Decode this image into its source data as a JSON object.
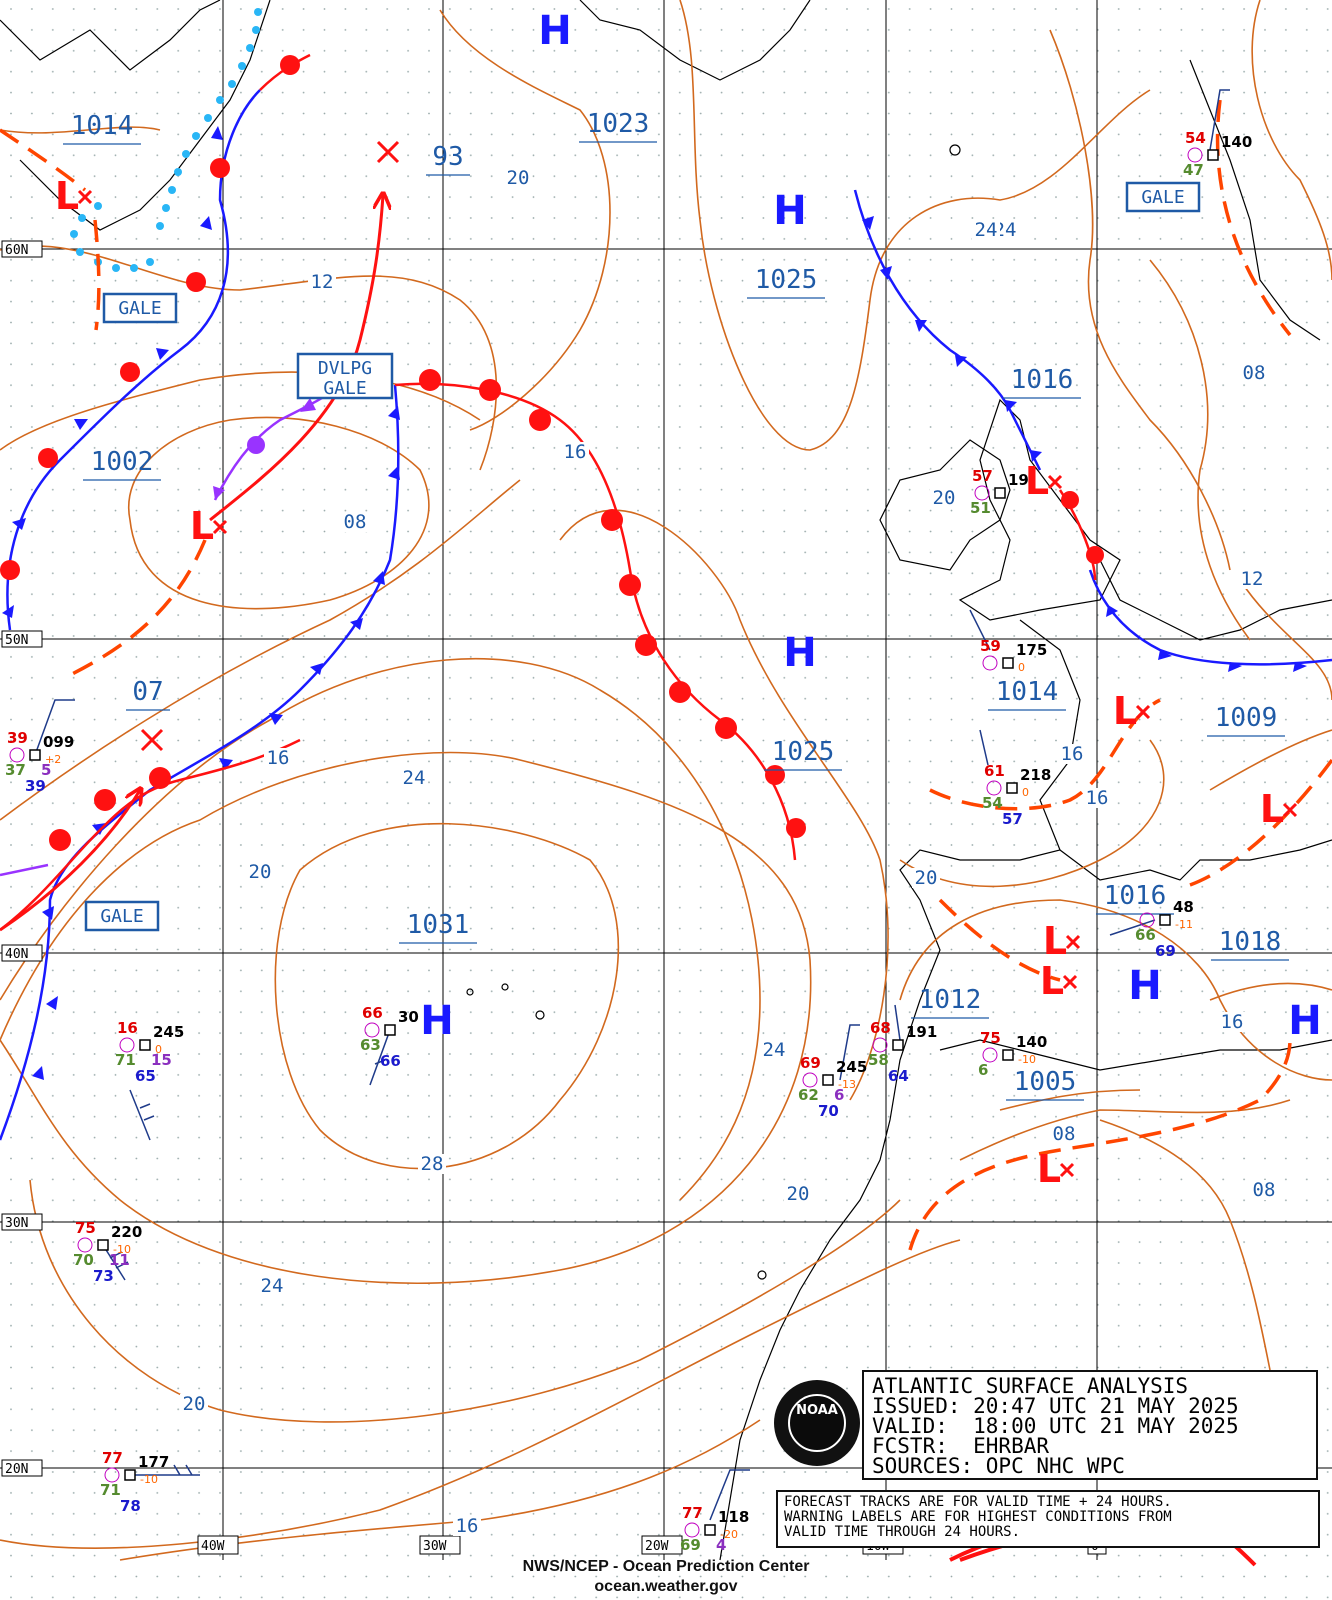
{
  "product": {
    "title": "ATLANTIC SURFACE ANALYSIS",
    "issued": "ISSUED: 20:47 UTC 21 MAY 2025",
    "valid": "VALID:  18:00 UTC 21 MAY 2025",
    "forecaster": "FCSTR:  EHRBAR",
    "sources": "SOURCES: OPC NHC WPC",
    "note_lines": [
      "FORECAST TRACKS ARE FOR VALID TIME + 24 HOURS.",
      "WARNING LABELS ARE FOR HIGHEST CONDITIONS FROM",
      "VALID TIME THROUGH 24 HOURS."
    ],
    "footer_line1": "NWS/NCEP - Ocean Prediction Center",
    "footer_line2": "ocean.weather.gov",
    "logo_text": "NOAA"
  },
  "grid": {
    "lat_labels": [
      "60N",
      "50N",
      "40N",
      "30N",
      "20N"
    ],
    "lon_labels": [
      "40W",
      "30W",
      "20W",
      "10W",
      "0"
    ]
  },
  "pressure_centers": [
    {
      "type": "H",
      "pressure": "1023"
    },
    {
      "type": "H",
      "pressure": "1025"
    },
    {
      "type": "H",
      "pressure": "1025"
    },
    {
      "type": "H",
      "pressure": "1031"
    },
    {
      "type": "H",
      "pressure": "1018"
    },
    {
      "type": "H",
      "pressure": ""
    },
    {
      "type": "L",
      "pressure": "1014"
    },
    {
      "type": "L",
      "pressure": "1002"
    },
    {
      "type": "L",
      "pressure": "1016"
    },
    {
      "type": "L",
      "pressure": "1014"
    },
    {
      "type": "L",
      "pressure": "1009"
    },
    {
      "type": "L",
      "pressure": "1016"
    },
    {
      "type": "L",
      "pressure": "1012"
    },
    {
      "type": "L",
      "pressure": "1005"
    },
    {
      "type": "X",
      "pressure": "93"
    },
    {
      "type": "X",
      "pressure": "07"
    }
  ],
  "warnings": [
    "GALE",
    "GALE",
    "DVLPG",
    "GALE",
    "GALE"
  ],
  "isobar_labels": [
    "20",
    "12",
    "08",
    "16",
    "24",
    "16",
    "20",
    "24",
    "28",
    "24",
    "20",
    "16",
    "20",
    "24",
    "20",
    "16",
    "16",
    "12",
    "08",
    "16",
    "08",
    "08",
    "24",
    "20"
  ],
  "station_obs": [
    {
      "t": "39",
      "p": "099",
      "d": "37",
      "v": "5",
      "w": "39",
      "tend": "+2"
    },
    {
      "t": "66",
      "p": "30",
      "d": "63",
      "v": "",
      "w": "66",
      "tend": ""
    },
    {
      "t": "16",
      "p": "245",
      "d": "71",
      "v": "15",
      "w": "65",
      "tend": "0"
    },
    {
      "t": "75",
      "p": "220",
      "d": "70",
      "v": "11",
      "w": "73",
      "tend": "-10"
    },
    {
      "t": "77",
      "p": "177",
      "d": "71",
      "v": "",
      "w": "78",
      "tend": "-10"
    },
    {
      "t": "77",
      "p": "118",
      "d": "69",
      "v": "4",
      "w": "",
      "tend": "-20"
    },
    {
      "t": "69",
      "p": "245",
      "d": "62",
      "v": "6",
      "w": "70",
      "tend": "-13"
    },
    {
      "t": "68",
      "p": "191",
      "d": "58",
      "v": "",
      "w": "64",
      "tend": ""
    },
    {
      "t": "75",
      "p": "140",
      "d": "6",
      "v": "",
      "w": "",
      "tend": "-10"
    },
    {
      "t": "61",
      "p": "218",
      "d": "54",
      "v": "",
      "w": "57",
      "tend": "0"
    },
    {
      "t": "59",
      "p": "175",
      "d": "",
      "v": "",
      "w": "",
      "tend": "0"
    },
    {
      "t": "57",
      "p": "19",
      "d": "51",
      "v": "",
      "w": "",
      "tend": ""
    },
    {
      "t": "54",
      "p": "140",
      "d": "47",
      "v": "",
      "w": "",
      "tend": ""
    },
    {
      "t": "",
      "p": "48",
      "d": "66",
      "v": "",
      "w": "69",
      "tend": "-11"
    }
  ],
  "colors": {
    "isobar": "#d2691e",
    "cold_front": "#1a1aff",
    "warm_front": "#ff1111",
    "occluded": "#9933ff",
    "high": "#1a1aff",
    "low": "#ff1111",
    "label": "#1f5aa6",
    "ice": "#29b6f6",
    "grid": "#000000"
  }
}
